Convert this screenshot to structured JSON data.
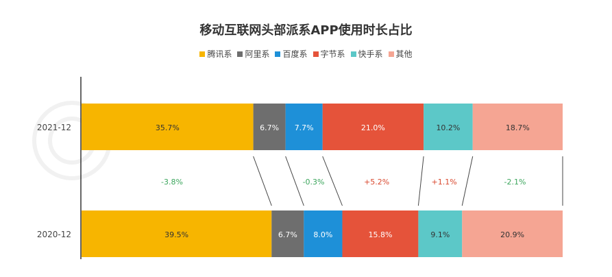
{
  "chart_data": {
    "type": "bar",
    "title": "移动互联网头部派系APP使用时长占比",
    "categories": [
      "2021-12",
      "2020-12"
    ],
    "series": [
      {
        "name": "腾讯系",
        "values": [
          35.7,
          39.5
        ],
        "color": "#F7B500"
      },
      {
        "name": "阿里系",
        "values": [
          6.7,
          6.7
        ],
        "color": "#6E6E6E"
      },
      {
        "name": "百度系",
        "values": [
          7.7,
          8.0
        ],
        "color": "#1E90D8"
      },
      {
        "name": "字节系",
        "values": [
          21.0,
          15.8
        ],
        "color": "#E5533A"
      },
      {
        "name": "快手系",
        "values": [
          10.2,
          9.1
        ],
        "color": "#5CC8C8"
      },
      {
        "name": "其他",
        "values": [
          18.7,
          20.9
        ],
        "color": "#F5A593"
      }
    ],
    "value_labels": [
      [
        "35.7%",
        "6.7%",
        "7.7%",
        "21.0%",
        "10.2%",
        "18.7%"
      ],
      [
        "39.5%",
        "6.7%",
        "8.0%",
        "15.8%",
        "9.1%",
        "20.9%"
      ]
    ],
    "changes": [
      "-3.8%",
      "",
      "-0.3%",
      "+5.2%",
      "+1.1%",
      "-2.1%"
    ],
    "change_colors": {
      "negative": "#3BA55C",
      "positive": "#D9482E"
    },
    "xlim": [
      0,
      100
    ],
    "legend_position": "top-center",
    "grid": false
  }
}
